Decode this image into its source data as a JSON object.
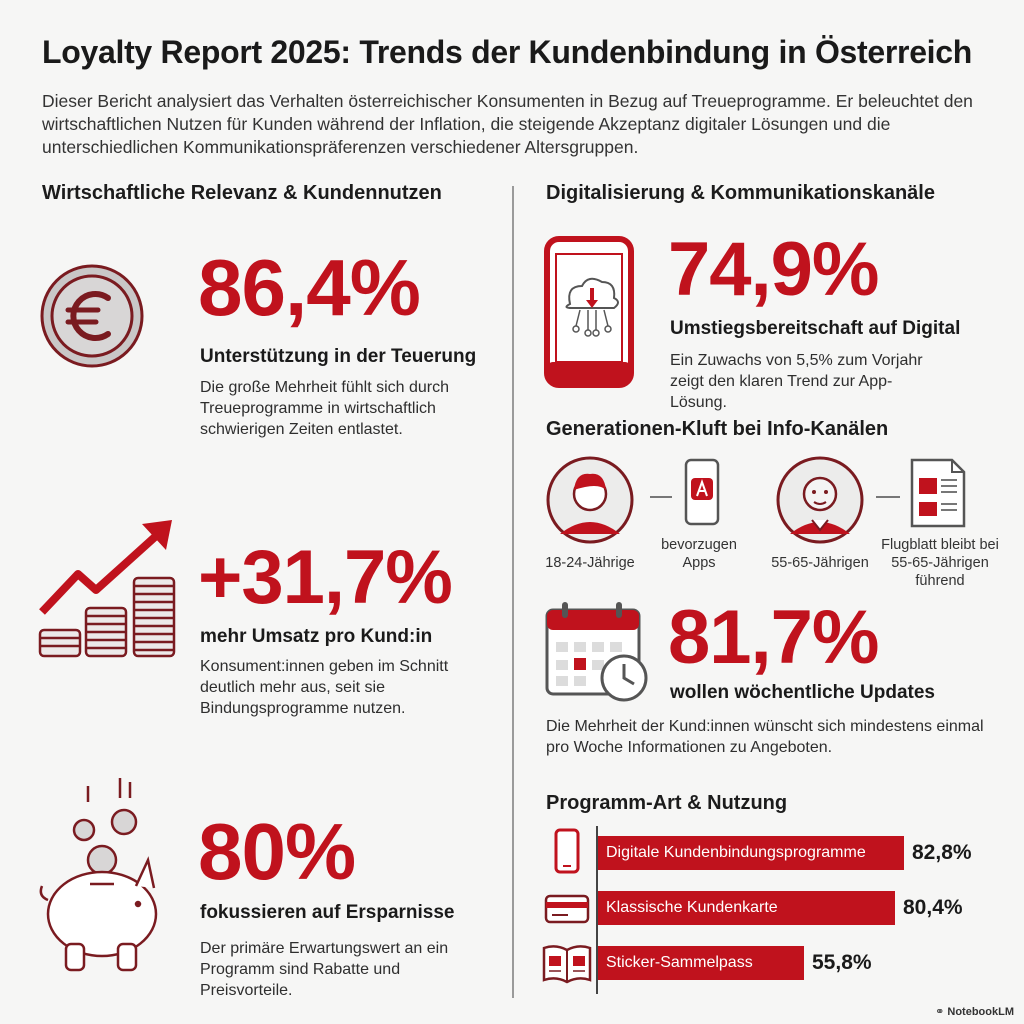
{
  "header": {
    "title": "Loyalty Report 2025: Trends der Kundenbindung in Österreich",
    "intro": "Dieser Bericht analysiert das Verhalten österreichischer Konsumenten in Bezug auf Treueprogramme. Er beleuchtet den wirtschaftlichen Nutzen für Kunden während der Inflation, die steigende Akzeptanz digitaler Lösungen und die unterschiedlichen Kommunikationspräferenzen verschiedener Altersgruppen."
  },
  "left": {
    "heading": "Wirtschaftliche Relevanz & Kundennutzen",
    "stats": [
      {
        "icon": "euro-coin-icon",
        "value": "86,4%",
        "label": "Unterstützung in der Teuerung",
        "desc": "Die große Mehrheit fühlt sich durch Treueprogramme in wirtschaftlich schwierigen Zeiten entlastet."
      },
      {
        "icon": "growth-coins-icon",
        "value": "+31,7%",
        "label": "mehr Umsatz pro Kund:in",
        "desc": "Konsument:innen geben im Schnitt deutlich mehr aus, seit sie Bindungsprogramme nutzen."
      },
      {
        "icon": "piggy-bank-icon",
        "value": "80%",
        "label": "fokussieren auf Ersparnisse",
        "desc": "Der primäre Erwartungswert an ein Programm sind Rabatte und Preisvorteile."
      }
    ]
  },
  "right": {
    "heading": "Digitalisierung & Kommunikationskanäle",
    "digital": {
      "value": "74,9%",
      "label": "Umstiegsbereitschaft auf Digital",
      "desc": "Ein Zuwachs von 5,5% zum Vorjahr zeigt den klaren Trend zur App-Lösung."
    },
    "generations": {
      "heading": "Generationen-Kluft bei Info-Kanälen",
      "young_caption": "18-24-Jährige",
      "young_pref": "bevorzugen Apps",
      "old_caption": "55-65-Jährigen",
      "old_pref": "Flugblatt bleibt bei 55-65-Jährigen führend"
    },
    "updates": {
      "value": "81,7%",
      "label": "wollen wöchentliche Updates",
      "desc": "Die Mehrheit der Kund:innen wünscht sich mindestens einmal pro Woche Informationen zu Angeboten."
    },
    "programs": {
      "heading": "Programm-Art & Nutzung",
      "items": [
        {
          "icon": "smartphone-icon",
          "label": "Digitale Kundenbindungsprogramme",
          "value": 82.8,
          "display": "82,8%"
        },
        {
          "icon": "card-icon",
          "label": "Klassische Kundenkarte",
          "value": 80.4,
          "display": "80,4%"
        },
        {
          "icon": "sticker-book-icon",
          "label": "Sticker-Sammelpass",
          "value": 55.8,
          "display": "55,8%"
        }
      ]
    }
  },
  "footer": {
    "brand": "NotebookLM"
  },
  "colors": {
    "accent": "#c0121d",
    "text": "#1c1c1c",
    "background": "#f6f6f5"
  }
}
